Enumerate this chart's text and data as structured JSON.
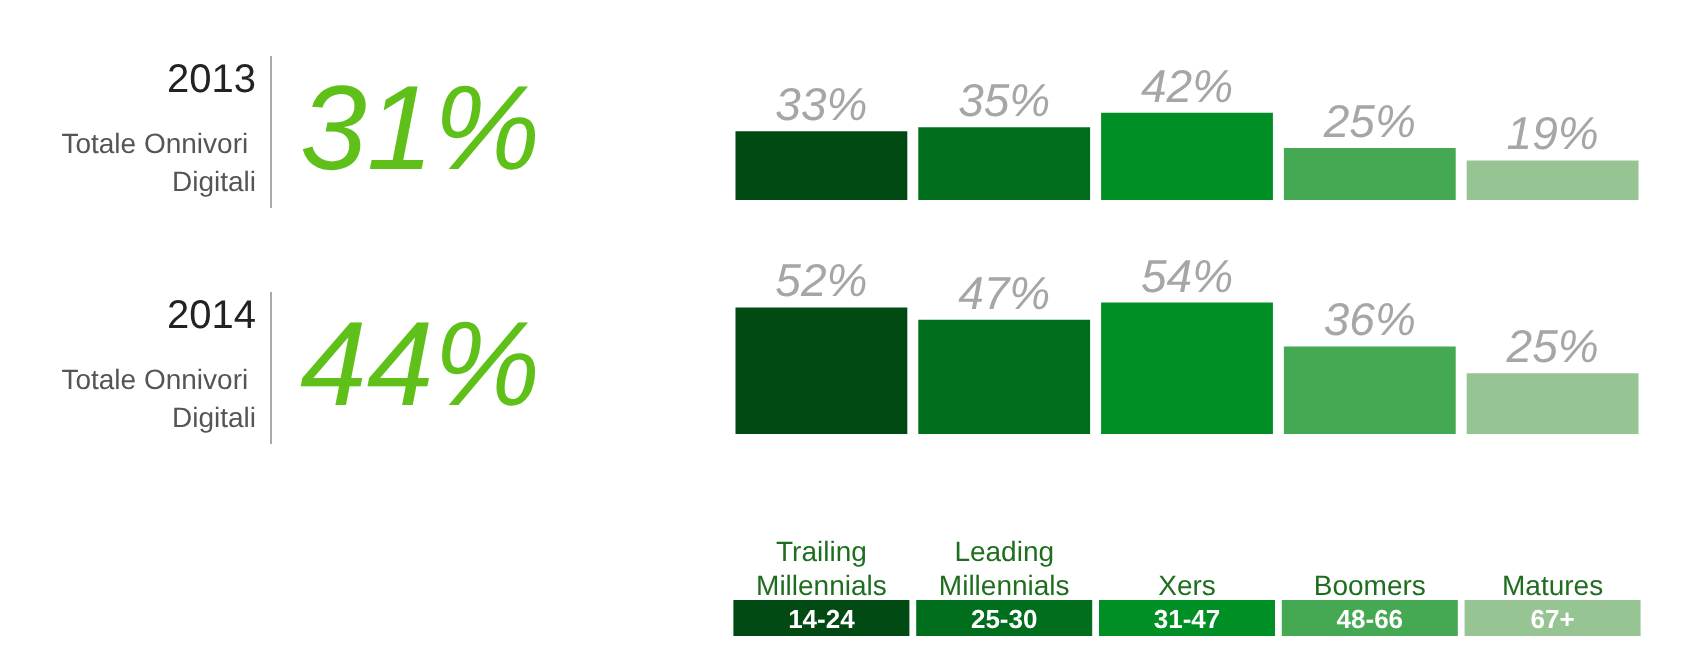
{
  "chart_data": [
    {
      "type": "bar",
      "annotations": [
        "2013",
        "Totale Onnivori Digitali",
        "31%"
      ],
      "categories": [
        null,
        null,
        null,
        null,
        null
      ],
      "values": [
        33,
        35,
        42,
        25,
        19
      ],
      "value_labels": [
        "33%",
        "35%",
        "42%",
        "25%",
        "19%"
      ],
      "colors": [
        "#024a14",
        "#016e1e",
        "#008f24",
        "#45a852",
        "#97c493"
      ]
    },
    {
      "type": "bar",
      "annotations": [
        "2014",
        "Totale Onnivori Digitali",
        "44%",
        "14-24",
        "25-30",
        "31-47",
        "48-66",
        "67+"
      ],
      "categories": [
        "Trailing Millennials",
        "Leading Millennials",
        "Xers",
        "Boomers",
        "Matures"
      ],
      "values": [
        52,
        47,
        54,
        36,
        25
      ],
      "value_labels": [
        "52%",
        "47%",
        "54%",
        "36%",
        "25%"
      ],
      "colors": [
        "#024a14",
        "#016e1e",
        "#008f24",
        "#45a852",
        "#97c493"
      ]
    }
  ]
}
